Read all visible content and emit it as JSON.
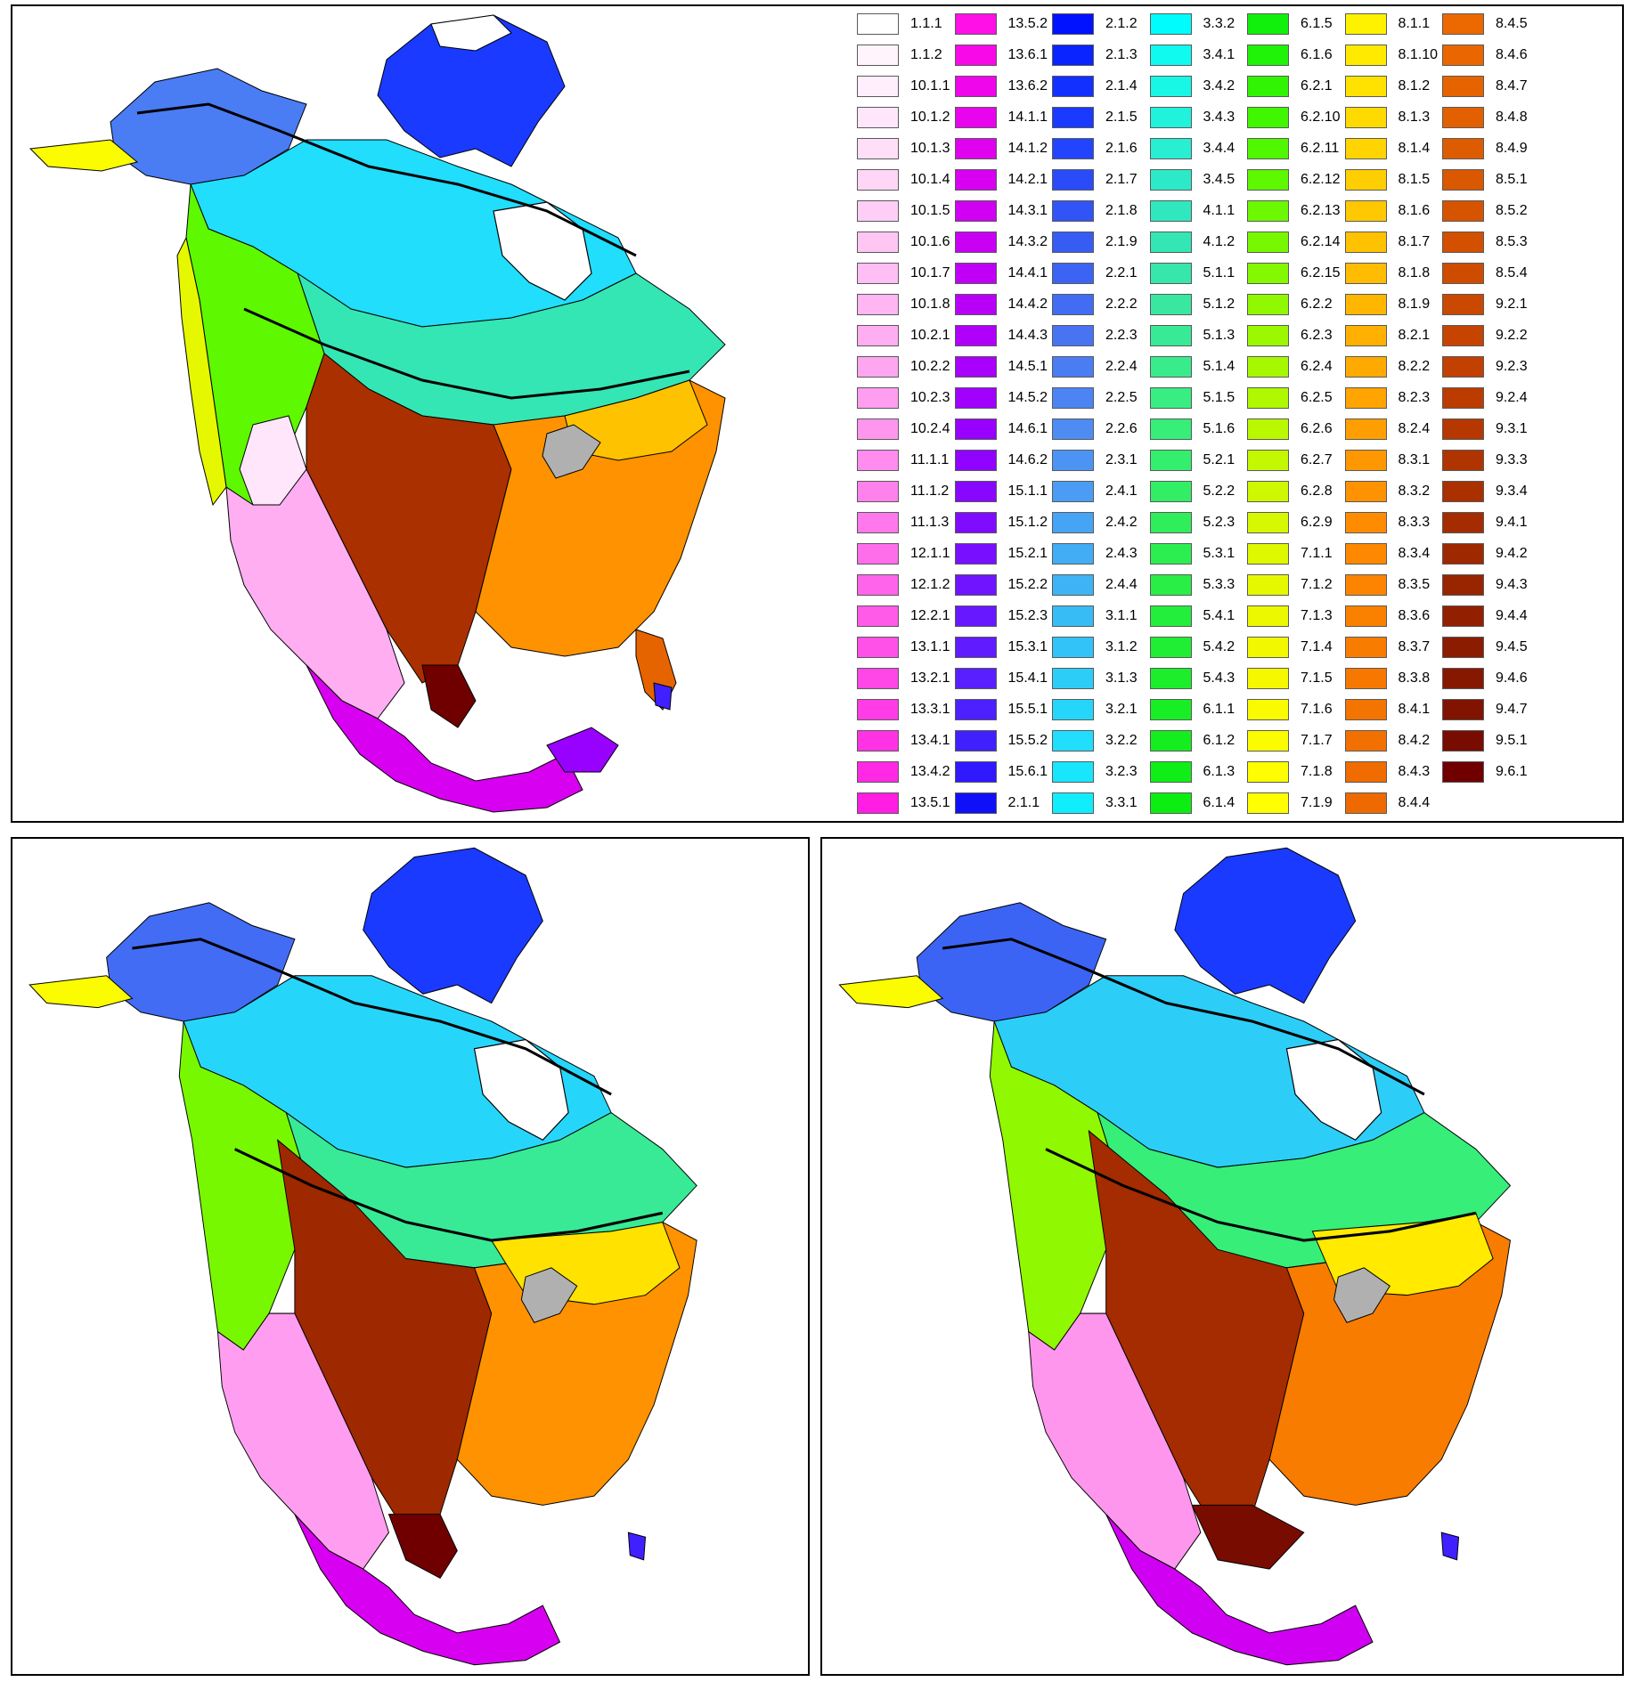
{
  "legend": [
    {
      "code": "1.1.1",
      "color": "#ffffff"
    },
    {
      "code": "1.1.2",
      "color": "#fff4fc"
    },
    {
      "code": "10.1.1",
      "color": "#ffeefc"
    },
    {
      "code": "10.1.2",
      "color": "#ffe6fa"
    },
    {
      "code": "10.1.3",
      "color": "#ffdef8"
    },
    {
      "code": "10.1.4",
      "color": "#ffd6f6"
    },
    {
      "code": "10.1.5",
      "color": "#ffcef6"
    },
    {
      "code": "10.1.6",
      "color": "#ffc6f4"
    },
    {
      "code": "10.1.7",
      "color": "#ffbef4"
    },
    {
      "code": "10.1.8",
      "color": "#ffb6f2"
    },
    {
      "code": "10.2.1",
      "color": "#ffaef2"
    },
    {
      "code": "10.2.2",
      "color": "#ffa6f0"
    },
    {
      "code": "10.2.3",
      "color": "#ff9ef0"
    },
    {
      "code": "10.2.4",
      "color": "#ff96ee"
    },
    {
      "code": "11.1.1",
      "color": "#ff8cee"
    },
    {
      "code": "11.1.2",
      "color": "#ff82ec"
    },
    {
      "code": "11.1.3",
      "color": "#ff78ec"
    },
    {
      "code": "12.1.1",
      "color": "#ff6eea"
    },
    {
      "code": "12.1.2",
      "color": "#ff64ea"
    },
    {
      "code": "12.2.1",
      "color": "#ff5ae8"
    },
    {
      "code": "13.1.1",
      "color": "#ff50e8"
    },
    {
      "code": "13.2.1",
      "color": "#ff46e6"
    },
    {
      "code": "13.3.1",
      "color": "#ff3ce6"
    },
    {
      "code": "13.4.1",
      "color": "#ff32e4"
    },
    {
      "code": "13.4.2",
      "color": "#ff28e4"
    },
    {
      "code": "13.5.1",
      "color": "#ff1ee2"
    },
    {
      "code": "13.5.2",
      "color": "#ff10e6"
    },
    {
      "code": "13.6.1",
      "color": "#f80ae8"
    },
    {
      "code": "13.6.2",
      "color": "#f006ea"
    },
    {
      "code": "14.1.1",
      "color": "#e804ec"
    },
    {
      "code": "14.1.2",
      "color": "#e002ee"
    },
    {
      "code": "14.2.1",
      "color": "#d800f0"
    },
    {
      "code": "14.3.1",
      "color": "#d000f2"
    },
    {
      "code": "14.3.2",
      "color": "#c800f4"
    },
    {
      "code": "14.4.1",
      "color": "#c000f6"
    },
    {
      "code": "14.4.2",
      "color": "#b800f8"
    },
    {
      "code": "14.4.3",
      "color": "#b000fa"
    },
    {
      "code": "14.5.1",
      "color": "#a800fc"
    },
    {
      "code": "14.5.2",
      "color": "#a000fe"
    },
    {
      "code": "14.6.1",
      "color": "#9800ff"
    },
    {
      "code": "14.6.2",
      "color": "#9004ff"
    },
    {
      "code": "15.1.1",
      "color": "#8808ff"
    },
    {
      "code": "15.1.2",
      "color": "#800cff"
    },
    {
      "code": "15.2.1",
      "color": "#7810ff"
    },
    {
      "code": "15.2.2",
      "color": "#7014ff"
    },
    {
      "code": "15.2.3",
      "color": "#6818ff"
    },
    {
      "code": "15.3.1",
      "color": "#601cff"
    },
    {
      "code": "15.4.1",
      "color": "#5820ff"
    },
    {
      "code": "15.5.1",
      "color": "#4c20ff"
    },
    {
      "code": "15.5.2",
      "color": "#4020ff"
    },
    {
      "code": "15.6.1",
      "color": "#3018ff"
    },
    {
      "code": "2.1.1",
      "color": "#1010f8"
    },
    {
      "code": "2.1.2",
      "color": "#0012ff"
    },
    {
      "code": "2.1.3",
      "color": "#0a24ff"
    },
    {
      "code": "2.1.4",
      "color": "#1230ff"
    },
    {
      "code": "2.1.5",
      "color": "#1a3aff"
    },
    {
      "code": "2.1.6",
      "color": "#2244ff"
    },
    {
      "code": "2.1.7",
      "color": "#2a4cf8"
    },
    {
      "code": "2.1.8",
      "color": "#3054f6"
    },
    {
      "code": "2.1.9",
      "color": "#365cf4"
    },
    {
      "code": "2.2.1",
      "color": "#3c64f4"
    },
    {
      "code": "2.2.2",
      "color": "#426cf4"
    },
    {
      "code": "2.2.3",
      "color": "#4874f4"
    },
    {
      "code": "2.2.4",
      "color": "#4a7cf4"
    },
    {
      "code": "2.2.5",
      "color": "#4c84f4"
    },
    {
      "code": "2.2.6",
      "color": "#4e8cf4"
    },
    {
      "code": "2.3.1",
      "color": "#4c94f4"
    },
    {
      "code": "2.4.1",
      "color": "#4a9cf4"
    },
    {
      "code": "2.4.2",
      "color": "#46a4f4"
    },
    {
      "code": "2.4.3",
      "color": "#42acf4"
    },
    {
      "code": "2.4.4",
      "color": "#3eb4f4"
    },
    {
      "code": "3.1.1",
      "color": "#38bcf6"
    },
    {
      "code": "3.1.2",
      "color": "#32c4f8"
    },
    {
      "code": "3.1.3",
      "color": "#2ccef8"
    },
    {
      "code": "3.2.1",
      "color": "#26d6fa"
    },
    {
      "code": "3.2.2",
      "color": "#20defc"
    },
    {
      "code": "3.2.3",
      "color": "#18e6fc"
    },
    {
      "code": "3.3.1",
      "color": "#10eefe"
    },
    {
      "code": "3.3.2",
      "color": "#00fcfc"
    },
    {
      "code": "3.4.1",
      "color": "#10faf0"
    },
    {
      "code": "3.4.2",
      "color": "#18f6e6"
    },
    {
      "code": "3.4.3",
      "color": "#20f2dc"
    },
    {
      "code": "3.4.4",
      "color": "#28eed2"
    },
    {
      "code": "3.4.5",
      "color": "#2ceac8"
    },
    {
      "code": "4.1.1",
      "color": "#30e8be"
    },
    {
      "code": "4.1.2",
      "color": "#34e6b4"
    },
    {
      "code": "5.1.1",
      "color": "#36e6aa"
    },
    {
      "code": "5.1.2",
      "color": "#38e8a0"
    },
    {
      "code": "5.1.3",
      "color": "#38ea96"
    },
    {
      "code": "5.1.4",
      "color": "#38ec8c"
    },
    {
      "code": "5.1.5",
      "color": "#38ee82"
    },
    {
      "code": "5.1.6",
      "color": "#36ee78"
    },
    {
      "code": "5.2.1",
      "color": "#34ee6e"
    },
    {
      "code": "5.2.2",
      "color": "#32ee64"
    },
    {
      "code": "5.2.3",
      "color": "#30ee5a"
    },
    {
      "code": "5.3.1",
      "color": "#2cee50"
    },
    {
      "code": "5.3.3",
      "color": "#28ee46"
    },
    {
      "code": "5.4.1",
      "color": "#24ee3c"
    },
    {
      "code": "5.4.2",
      "color": "#20ee34"
    },
    {
      "code": "5.4.3",
      "color": "#1cee2c"
    },
    {
      "code": "6.1.1",
      "color": "#18ee24"
    },
    {
      "code": "6.1.2",
      "color": "#14ee1e"
    },
    {
      "code": "6.1.3",
      "color": "#10ee18"
    },
    {
      "code": "6.1.4",
      "color": "#0cee12"
    },
    {
      "code": "6.1.5",
      "color": "#10f00c"
    },
    {
      "code": "6.1.6",
      "color": "#20f208"
    },
    {
      "code": "6.2.1",
      "color": "#30f404"
    },
    {
      "code": "6.2.10",
      "color": "#40f600"
    },
    {
      "code": "6.2.11",
      "color": "#50f800"
    },
    {
      "code": "6.2.12",
      "color": "#5ef800"
    },
    {
      "code": "6.2.13",
      "color": "#6cf800"
    },
    {
      "code": "6.2.14",
      "color": "#78f800"
    },
    {
      "code": "6.2.15",
      "color": "#84f800"
    },
    {
      "code": "6.2.2",
      "color": "#90f800"
    },
    {
      "code": "6.2.3",
      "color": "#9cf800"
    },
    {
      "code": "6.2.4",
      "color": "#a6f800"
    },
    {
      "code": "6.2.5",
      "color": "#b0f800"
    },
    {
      "code": "6.2.6",
      "color": "#baf800"
    },
    {
      "code": "6.2.7",
      "color": "#c4f800"
    },
    {
      "code": "6.2.8",
      "color": "#cef800"
    },
    {
      "code": "6.2.9",
      "color": "#d6f800"
    },
    {
      "code": "7.1.1",
      "color": "#def800"
    },
    {
      "code": "7.1.2",
      "color": "#e6f800"
    },
    {
      "code": "7.1.3",
      "color": "#ecf800"
    },
    {
      "code": "7.1.4",
      "color": "#f2f800"
    },
    {
      "code": "7.1.5",
      "color": "#f6f800"
    },
    {
      "code": "7.1.6",
      "color": "#fafa00"
    },
    {
      "code": "7.1.7",
      "color": "#fcfc00"
    },
    {
      "code": "7.1.8",
      "color": "#fefe00"
    },
    {
      "code": "7.1.9",
      "color": "#ffff00"
    },
    {
      "code": "8.1.1",
      "color": "#fff200"
    },
    {
      "code": "8.1.10",
      "color": "#ffea00"
    },
    {
      "code": "8.1.2",
      "color": "#ffe200"
    },
    {
      "code": "8.1.3",
      "color": "#ffda00"
    },
    {
      "code": "8.1.4",
      "color": "#ffd400"
    },
    {
      "code": "8.1.5",
      "color": "#ffce00"
    },
    {
      "code": "8.1.6",
      "color": "#ffc800"
    },
    {
      "code": "8.1.7",
      "color": "#ffc200"
    },
    {
      "code": "8.1.8",
      "color": "#ffbc00"
    },
    {
      "code": "8.1.9",
      "color": "#ffb600"
    },
    {
      "code": "8.2.1",
      "color": "#ffb000"
    },
    {
      "code": "8.2.2",
      "color": "#ffaa00"
    },
    {
      "code": "8.2.3",
      "color": "#ffa400"
    },
    {
      "code": "8.2.4",
      "color": "#ff9e00"
    },
    {
      "code": "8.3.1",
      "color": "#ff9800"
    },
    {
      "code": "8.3.2",
      "color": "#ff9200"
    },
    {
      "code": "8.3.3",
      "color": "#ff8c00"
    },
    {
      "code": "8.3.4",
      "color": "#fe8800"
    },
    {
      "code": "8.3.5",
      "color": "#fc8400"
    },
    {
      "code": "8.3.6",
      "color": "#fa8000"
    },
    {
      "code": "8.3.7",
      "color": "#f87c00"
    },
    {
      "code": "8.3.8",
      "color": "#f67800"
    },
    {
      "code": "8.4.1",
      "color": "#f47400"
    },
    {
      "code": "8.4.2",
      "color": "#f27000"
    },
    {
      "code": "8.4.3",
      "color": "#f06c00"
    },
    {
      "code": "8.4.4",
      "color": "#ee6a00"
    },
    {
      "code": "8.4.5",
      "color": "#ec6800"
    },
    {
      "code": "8.4.6",
      "color": "#ea6600"
    },
    {
      "code": "8.4.7",
      "color": "#e66400"
    },
    {
      "code": "8.4.8",
      "color": "#e26000"
    },
    {
      "code": "8.4.9",
      "color": "#de5c00"
    },
    {
      "code": "8.5.1",
      "color": "#da5800"
    },
    {
      "code": "8.5.2",
      "color": "#d65400"
    },
    {
      "code": "8.5.3",
      "color": "#d25000"
    },
    {
      "code": "8.5.4",
      "color": "#ce4c00"
    },
    {
      "code": "9.2.1",
      "color": "#ca4800"
    },
    {
      "code": "9.2.2",
      "color": "#c64400"
    },
    {
      "code": "9.2.3",
      "color": "#c24000"
    },
    {
      "code": "9.2.4",
      "color": "#bc3c00"
    },
    {
      "code": "9.3.1",
      "color": "#b63800"
    },
    {
      "code": "9.3.3",
      "color": "#b03400"
    },
    {
      "code": "9.3.4",
      "color": "#aa3000"
    },
    {
      "code": "9.4.1",
      "color": "#a42c00"
    },
    {
      "code": "9.4.2",
      "color": "#9e2800"
    },
    {
      "code": "9.4.3",
      "color": "#982400"
    },
    {
      "code": "9.4.4",
      "color": "#922000"
    },
    {
      "code": "9.4.5",
      "color": "#8c1c00"
    },
    {
      "code": "9.4.6",
      "color": "#861800"
    },
    {
      "code": "9.4.7",
      "color": "#801400"
    },
    {
      "code": "9.5.1",
      "color": "#780c00"
    },
    {
      "code": "9.6.1",
      "color": "#700000"
    }
  ]
}
